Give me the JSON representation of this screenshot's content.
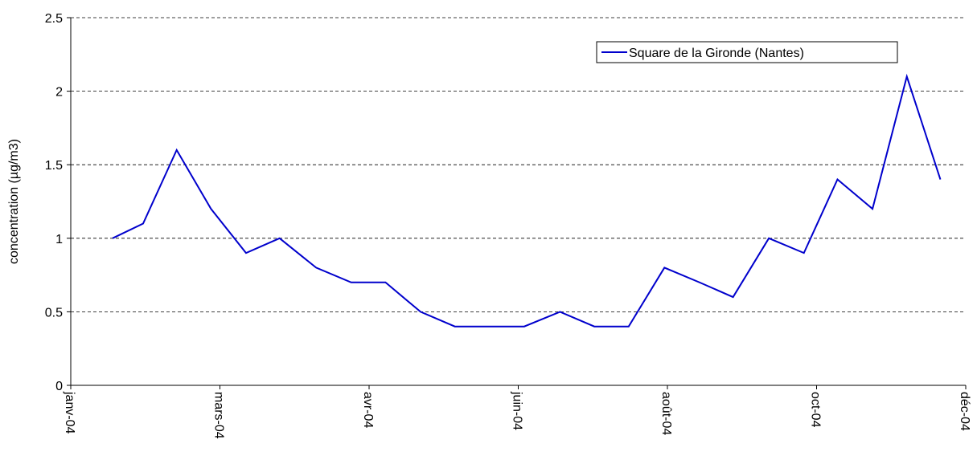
{
  "chart_data": {
    "type": "line",
    "ylabel": "concentration (µg/m3)",
    "x": [
      0.28,
      0.485,
      0.71,
      0.94,
      1.175,
      1.4,
      1.645,
      1.88,
      2.11,
      2.345,
      2.575,
      2.81,
      3.04,
      3.28,
      3.51,
      3.74,
      3.98,
      4.215,
      4.44,
      4.68,
      4.915,
      5.14,
      5.375,
      5.605,
      5.83
    ],
    "series": [
      {
        "name": "Square de la Gironde (Nantes)",
        "color": "#0000cc",
        "values": [
          1,
          1.1,
          1.6,
          1.2,
          0.9,
          1.0,
          0.8,
          0.7,
          0.7,
          0.5,
          0.4,
          0.4,
          0.4,
          0.5,
          0.4,
          0.4,
          0.8,
          0.7,
          0.6,
          1.0,
          0.9,
          1.4,
          1.2,
          2.1,
          1.4
        ]
      }
    ],
    "xlim": [
      0,
      6
    ],
    "xticks": [
      {
        "value": 0,
        "label": "janv-04"
      },
      {
        "value": 1,
        "label": "mars-04"
      },
      {
        "value": 2,
        "label": "avr-04"
      },
      {
        "value": 3,
        "label": "juin-04"
      },
      {
        "value": 4,
        "label": "août-04"
      },
      {
        "value": 5,
        "label": "oct-04"
      },
      {
        "value": 6,
        "label": "déc-04"
      }
    ],
    "ylim": [
      0,
      2.5
    ],
    "yticks": [
      0,
      0.5,
      1,
      1.5,
      2,
      2.5
    ],
    "grid": true,
    "legend": "upper right"
  }
}
